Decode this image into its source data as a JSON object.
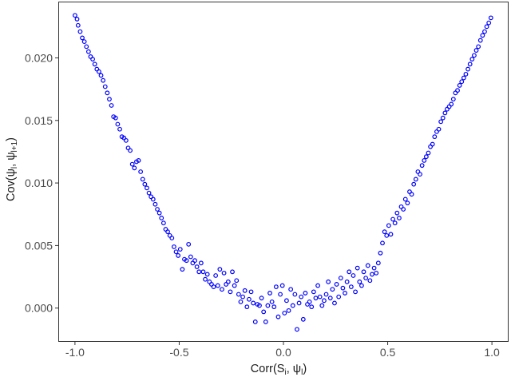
{
  "chart_data": {
    "type": "scatter",
    "xlabel_main": "Corr(S",
    "xlabel_sub1": "i",
    "xlabel_mid": ", ψ",
    "xlabel_sub2": "l",
    "xlabel_end": ")",
    "ylabel_main": "Cov(ψ",
    "ylabel_sub1": "l",
    "ylabel_mid": ", ψ",
    "ylabel_sub2": "l+1",
    "ylabel_end": ")",
    "xlim": [
      -1.08,
      1.08
    ],
    "ylim": [
      -0.0027,
      0.0245
    ],
    "x_ticks": [
      -1.0,
      -0.5,
      0.0,
      0.5,
      1.0
    ],
    "x_tick_labels": [
      "-1.0",
      "-0.5",
      "0.0",
      "0.5",
      "1.0"
    ],
    "y_ticks": [
      0.0,
      0.005,
      0.01,
      0.015,
      0.02
    ],
    "y_tick_labels": [
      "0.000",
      "0.005",
      "0.010",
      "0.015",
      "0.020"
    ],
    "grid": false,
    "point_color": "#0000ff",
    "points": [
      [
        -1.0,
        0.0234
      ],
      [
        -0.99,
        0.0231
      ],
      [
        -0.985,
        0.0226
      ],
      [
        -0.975,
        0.0221
      ],
      [
        -0.965,
        0.0216
      ],
      [
        -0.955,
        0.0213
      ],
      [
        -0.945,
        0.0209
      ],
      [
        -0.935,
        0.0205
      ],
      [
        -0.925,
        0.0201
      ],
      [
        -0.915,
        0.0199
      ],
      [
        -0.905,
        0.0195
      ],
      [
        -0.895,
        0.0191
      ],
      [
        -0.885,
        0.0189
      ],
      [
        -0.875,
        0.0186
      ],
      [
        -0.865,
        0.0182
      ],
      [
        -0.855,
        0.0177
      ],
      [
        -0.845,
        0.0172
      ],
      [
        -0.835,
        0.0167
      ],
      [
        -0.825,
        0.0162
      ],
      [
        -0.815,
        0.0153
      ],
      [
        -0.805,
        0.0152
      ],
      [
        -0.795,
        0.0147
      ],
      [
        -0.785,
        0.0143
      ],
      [
        -0.775,
        0.0137
      ],
      [
        -0.765,
        0.0136
      ],
      [
        -0.755,
        0.0134
      ],
      [
        -0.745,
        0.0128
      ],
      [
        -0.735,
        0.0126
      ],
      [
        -0.725,
        0.0115
      ],
      [
        -0.715,
        0.0112
      ],
      [
        -0.705,
        0.0117
      ],
      [
        -0.695,
        0.0118
      ],
      [
        -0.685,
        0.0109
      ],
      [
        -0.675,
        0.0103
      ],
      [
        -0.665,
        0.0099
      ],
      [
        -0.655,
        0.0096
      ],
      [
        -0.645,
        0.0092
      ],
      [
        -0.635,
        0.0089
      ],
      [
        -0.625,
        0.0087
      ],
      [
        -0.615,
        0.0083
      ],
      [
        -0.605,
        0.0079
      ],
      [
        -0.595,
        0.0076
      ],
      [
        -0.585,
        0.0072
      ],
      [
        -0.575,
        0.0068
      ],
      [
        -0.565,
        0.0063
      ],
      [
        -0.555,
        0.0061
      ],
      [
        -0.545,
        0.0058
      ],
      [
        -0.535,
        0.0056
      ],
      [
        -0.525,
        0.0049
      ],
      [
        -0.515,
        0.0045
      ],
      [
        -0.505,
        0.0042
      ],
      [
        -0.495,
        0.0047
      ],
      [
        -0.485,
        0.0031
      ],
      [
        -0.475,
        0.0039
      ],
      [
        -0.465,
        0.0038
      ],
      [
        -0.455,
        0.0051
      ],
      [
        -0.445,
        0.0041
      ],
      [
        -0.435,
        0.0036
      ],
      [
        -0.425,
        0.0038
      ],
      [
        -0.415,
        0.0033
      ],
      [
        -0.405,
        0.0029
      ],
      [
        -0.395,
        0.0036
      ],
      [
        -0.385,
        0.0029
      ],
      [
        -0.375,
        0.0023
      ],
      [
        -0.365,
        0.0027
      ],
      [
        -0.355,
        0.0021
      ],
      [
        -0.345,
        0.0019
      ],
      [
        -0.335,
        0.0017
      ],
      [
        -0.325,
        0.0026
      ],
      [
        -0.315,
        0.0018
      ],
      [
        -0.305,
        0.0031
      ],
      [
        -0.295,
        0.0015
      ],
      [
        -0.285,
        0.0028
      ],
      [
        -0.275,
        0.0019
      ],
      [
        -0.265,
        0.0021
      ],
      [
        -0.255,
        0.0013
      ],
      [
        -0.245,
        0.0029
      ],
      [
        -0.235,
        0.0018
      ],
      [
        -0.225,
        0.0022
      ],
      [
        -0.215,
        0.0011
      ],
      [
        -0.205,
        0.0005
      ],
      [
        -0.195,
        0.0009
      ],
      [
        -0.185,
        0.0014
      ],
      [
        -0.175,
        0.0001
      ],
      [
        -0.165,
        0.0007
      ],
      [
        -0.155,
        0.0013
      ],
      [
        -0.145,
        0.0004
      ],
      [
        -0.135,
        -0.0011
      ],
      [
        -0.125,
        0.0003
      ],
      [
        -0.115,
        0.0002
      ],
      [
        -0.105,
        0.0008
      ],
      [
        -0.095,
        -0.0003
      ],
      [
        -0.085,
        -0.0011
      ],
      [
        -0.075,
        0.0002
      ],
      [
        -0.065,
        0.0012
      ],
      [
        -0.055,
        0.0005
      ],
      [
        -0.045,
        0.0001
      ],
      [
        -0.035,
        0.0017
      ],
      [
        -0.025,
        -0.0007
      ],
      [
        -0.015,
        0.0011
      ],
      [
        -0.005,
        0.0018
      ],
      [
        0.005,
        -0.0004
      ],
      [
        0.015,
        0.0006
      ],
      [
        0.025,
        -0.0002
      ],
      [
        0.035,
        0.0015
      ],
      [
        0.045,
        0.0002
      ],
      [
        0.055,
        0.0011
      ],
      [
        0.065,
        -0.0017
      ],
      [
        0.075,
        0.0004
      ],
      [
        0.085,
        0.0009
      ],
      [
        0.095,
        -0.0009
      ],
      [
        0.105,
        0.0012
      ],
      [
        0.115,
        0.0003
      ],
      [
        0.125,
        0.0005
      ],
      [
        0.135,
        0.0001
      ],
      [
        0.145,
        0.0013
      ],
      [
        0.155,
        0.0008
      ],
      [
        0.165,
        0.0018
      ],
      [
        0.175,
        0.0009
      ],
      [
        0.185,
        0.0002
      ],
      [
        0.195,
        0.0006
      ],
      [
        0.205,
        0.0011
      ],
      [
        0.215,
        0.0021
      ],
      [
        0.225,
        0.0008
      ],
      [
        0.235,
        0.0015
      ],
      [
        0.245,
        0.0004
      ],
      [
        0.255,
        0.0019
      ],
      [
        0.265,
        0.0009
      ],
      [
        0.275,
        0.0024
      ],
      [
        0.285,
        0.0016
      ],
      [
        0.295,
        0.0012
      ],
      [
        0.305,
        0.0021
      ],
      [
        0.315,
        0.0029
      ],
      [
        0.325,
        0.0017
      ],
      [
        0.335,
        0.0026
      ],
      [
        0.345,
        0.0013
      ],
      [
        0.355,
        0.0032
      ],
      [
        0.365,
        0.0021
      ],
      [
        0.375,
        0.0018
      ],
      [
        0.385,
        0.0029
      ],
      [
        0.395,
        0.0024
      ],
      [
        0.405,
        0.0034
      ],
      [
        0.415,
        0.0022
      ],
      [
        0.425,
        0.0027
      ],
      [
        0.435,
        0.0032
      ],
      [
        0.445,
        0.0028
      ],
      [
        0.455,
        0.0036
      ],
      [
        0.465,
        0.0044
      ],
      [
        0.475,
        0.0052
      ],
      [
        0.485,
        0.0061
      ],
      [
        0.495,
        0.0058
      ],
      [
        0.505,
        0.0066
      ],
      [
        0.515,
        0.0059
      ],
      [
        0.525,
        0.0071
      ],
      [
        0.535,
        0.0068
      ],
      [
        0.545,
        0.0076
      ],
      [
        0.555,
        0.0072
      ],
      [
        0.565,
        0.0081
      ],
      [
        0.575,
        0.0079
      ],
      [
        0.585,
        0.0087
      ],
      [
        0.595,
        0.0084
      ],
      [
        0.605,
        0.0093
      ],
      [
        0.615,
        0.0091
      ],
      [
        0.625,
        0.0099
      ],
      [
        0.635,
        0.0103
      ],
      [
        0.645,
        0.0109
      ],
      [
        0.655,
        0.0107
      ],
      [
        0.665,
        0.0114
      ],
      [
        0.675,
        0.0118
      ],
      [
        0.685,
        0.0121
      ],
      [
        0.695,
        0.0124
      ],
      [
        0.705,
        0.0129
      ],
      [
        0.715,
        0.0131
      ],
      [
        0.725,
        0.0137
      ],
      [
        0.735,
        0.0141
      ],
      [
        0.745,
        0.0143
      ],
      [
        0.755,
        0.0149
      ],
      [
        0.765,
        0.0152
      ],
      [
        0.775,
        0.0156
      ],
      [
        0.785,
        0.0159
      ],
      [
        0.795,
        0.0161
      ],
      [
        0.805,
        0.0163
      ],
      [
        0.815,
        0.0167
      ],
      [
        0.825,
        0.0172
      ],
      [
        0.835,
        0.0174
      ],
      [
        0.845,
        0.0178
      ],
      [
        0.855,
        0.0181
      ],
      [
        0.865,
        0.0184
      ],
      [
        0.875,
        0.0187
      ],
      [
        0.885,
        0.0191
      ],
      [
        0.895,
        0.0195
      ],
      [
        0.905,
        0.0199
      ],
      [
        0.915,
        0.0202
      ],
      [
        0.925,
        0.0206
      ],
      [
        0.935,
        0.0209
      ],
      [
        0.945,
        0.0214
      ],
      [
        0.955,
        0.0218
      ],
      [
        0.965,
        0.0221
      ],
      [
        0.975,
        0.0225
      ],
      [
        0.985,
        0.0228
      ],
      [
        0.995,
        0.0232
      ]
    ]
  }
}
